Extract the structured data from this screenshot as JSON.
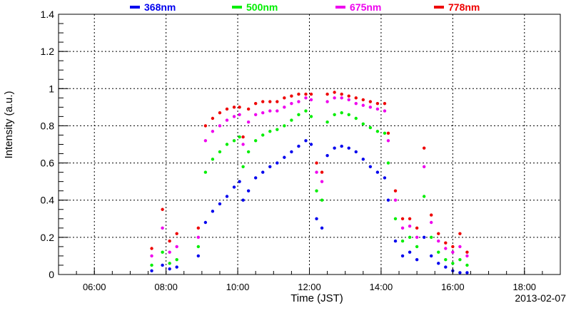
{
  "chart_data": {
    "type": "scatter",
    "xlabel": "Time (JST)",
    "ylabel": "Intensity (a.u.)",
    "date_label": "2013-02-07",
    "xlim": [
      5.0,
      19.0
    ],
    "ylim": [
      0,
      1.4
    ],
    "x_ticks": [
      {
        "value": 6,
        "label": "06:00"
      },
      {
        "value": 8,
        "label": "08:00"
      },
      {
        "value": 10,
        "label": "10:00"
      },
      {
        "value": 12,
        "label": "12:00"
      },
      {
        "value": 14,
        "label": "14:00"
      },
      {
        "value": 16,
        "label": "16:00"
      },
      {
        "value": 18,
        "label": "18:00"
      }
    ],
    "y_ticks": [
      {
        "value": 0,
        "label": "0"
      },
      {
        "value": 0.2,
        "label": "0.2"
      },
      {
        "value": 0.4,
        "label": "0.4"
      },
      {
        "value": 0.6,
        "label": "0.6"
      },
      {
        "value": 0.8,
        "label": "0.8"
      },
      {
        "value": 1.0,
        "label": "1"
      },
      {
        "value": 1.2,
        "label": "1.2"
      },
      {
        "value": 1.4,
        "label": "1.4"
      }
    ],
    "grid": true,
    "legend_position": "top",
    "series": [
      {
        "name": "368nm",
        "color": "#0000ee",
        "x": [
          7.6,
          7.9,
          8.1,
          8.3,
          8.9,
          9.1,
          9.3,
          9.5,
          9.7,
          9.9,
          10.05,
          10.15,
          10.3,
          10.5,
          10.7,
          10.9,
          11.1,
          11.3,
          11.5,
          11.7,
          11.9,
          12.05,
          12.2,
          12.35,
          12.5,
          12.7,
          12.9,
          13.1,
          13.3,
          13.5,
          13.7,
          13.9,
          14.1,
          14.2,
          14.4,
          14.6,
          14.8,
          15.0,
          15.2,
          15.4,
          15.6,
          15.8,
          16.0,
          16.2,
          16.4
        ],
        "y": [
          0.02,
          0.05,
          0.03,
          0.04,
          0.1,
          0.28,
          0.34,
          0.38,
          0.42,
          0.47,
          0.5,
          0.4,
          0.45,
          0.52,
          0.55,
          0.58,
          0.6,
          0.63,
          0.66,
          0.69,
          0.72,
          0.7,
          0.3,
          0.25,
          0.64,
          0.68,
          0.69,
          0.68,
          0.66,
          0.62,
          0.58,
          0.55,
          0.52,
          0.4,
          0.18,
          0.1,
          0.12,
          0.08,
          0.2,
          0.1,
          0.06,
          0.04,
          0.02,
          0.01,
          0.01
        ]
      },
      {
        "name": "500nm",
        "color": "#00ee00",
        "x": [
          7.6,
          7.9,
          8.1,
          8.3,
          8.9,
          9.1,
          9.3,
          9.5,
          9.7,
          9.9,
          10.05,
          10.15,
          10.3,
          10.5,
          10.7,
          10.9,
          11.1,
          11.3,
          11.5,
          11.7,
          11.9,
          12.05,
          12.2,
          12.35,
          12.5,
          12.7,
          12.9,
          13.1,
          13.3,
          13.5,
          13.7,
          13.9,
          14.1,
          14.2,
          14.4,
          14.6,
          14.8,
          15.0,
          15.2,
          15.4,
          15.6,
          15.8,
          16.0,
          16.2,
          16.4
        ],
        "y": [
          0.05,
          0.12,
          0.06,
          0.08,
          0.15,
          0.55,
          0.62,
          0.66,
          0.7,
          0.72,
          0.74,
          0.58,
          0.66,
          0.72,
          0.75,
          0.77,
          0.78,
          0.8,
          0.83,
          0.86,
          0.88,
          0.85,
          0.45,
          0.4,
          0.82,
          0.86,
          0.87,
          0.86,
          0.84,
          0.81,
          0.79,
          0.77,
          0.76,
          0.6,
          0.3,
          0.18,
          0.2,
          0.15,
          0.42,
          0.2,
          0.12,
          0.08,
          0.06,
          0.08,
          0.05
        ]
      },
      {
        "name": "675nm",
        "color": "#ee00ee",
        "x": [
          7.6,
          7.9,
          8.1,
          8.3,
          8.9,
          9.1,
          9.3,
          9.5,
          9.7,
          9.9,
          10.05,
          10.15,
          10.3,
          10.5,
          10.7,
          10.9,
          11.1,
          11.3,
          11.5,
          11.7,
          11.9,
          12.05,
          12.2,
          12.35,
          12.5,
          12.7,
          12.9,
          13.1,
          13.3,
          13.5,
          13.7,
          13.9,
          14.1,
          14.2,
          14.4,
          14.6,
          14.8,
          15.0,
          15.2,
          15.4,
          15.6,
          15.8,
          16.0,
          16.2,
          16.4
        ],
        "y": [
          0.1,
          0.25,
          0.12,
          0.15,
          0.2,
          0.72,
          0.77,
          0.8,
          0.83,
          0.85,
          0.86,
          0.7,
          0.82,
          0.86,
          0.87,
          0.88,
          0.88,
          0.9,
          0.92,
          0.93,
          0.95,
          0.94,
          0.55,
          0.5,
          0.93,
          0.95,
          0.95,
          0.94,
          0.92,
          0.91,
          0.9,
          0.89,
          0.88,
          0.72,
          0.4,
          0.25,
          0.26,
          0.2,
          0.58,
          0.28,
          0.18,
          0.14,
          0.12,
          0.15,
          0.1
        ]
      },
      {
        "name": "778nm",
        "color": "#ee0000",
        "x": [
          7.6,
          7.9,
          8.1,
          8.3,
          8.9,
          9.1,
          9.3,
          9.5,
          9.7,
          9.9,
          10.05,
          10.15,
          10.3,
          10.5,
          10.7,
          10.9,
          11.1,
          11.3,
          11.5,
          11.7,
          11.9,
          12.05,
          12.2,
          12.35,
          12.5,
          12.7,
          12.9,
          13.1,
          13.3,
          13.5,
          13.7,
          13.9,
          14.1,
          14.2,
          14.4,
          14.6,
          14.8,
          15.0,
          15.2,
          15.4,
          15.6,
          15.8,
          16.0,
          16.2,
          16.4
        ],
        "y": [
          0.14,
          0.35,
          0.18,
          0.22,
          0.25,
          0.8,
          0.84,
          0.87,
          0.89,
          0.9,
          0.9,
          0.74,
          0.89,
          0.92,
          0.93,
          0.93,
          0.93,
          0.95,
          0.96,
          0.97,
          0.97,
          0.97,
          0.6,
          0.55,
          0.97,
          0.98,
          0.97,
          0.96,
          0.95,
          0.94,
          0.93,
          0.92,
          0.92,
          0.76,
          0.45,
          0.3,
          0.3,
          0.25,
          0.68,
          0.32,
          0.22,
          0.17,
          0.15,
          0.22,
          0.12
        ]
      }
    ]
  }
}
